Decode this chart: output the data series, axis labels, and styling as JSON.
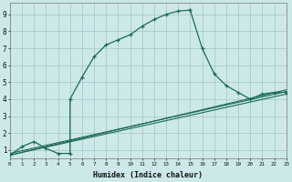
{
  "xlabel": "Humidex (Indice chaleur)",
  "bg_color": "#cde8e8",
  "grid_color": "#a8cccc",
  "line_color": "#1a6b5a",
  "xlim": [
    0,
    23
  ],
  "ylim": [
    0.5,
    9.7
  ],
  "xticks": [
    0,
    1,
    2,
    3,
    4,
    5,
    6,
    7,
    8,
    9,
    10,
    11,
    12,
    13,
    14,
    15,
    16,
    17,
    18,
    19,
    20,
    21,
    22,
    23
  ],
  "yticks": [
    1,
    2,
    3,
    4,
    5,
    6,
    7,
    8,
    9
  ],
  "main_line_x": [
    0,
    1,
    2,
    3,
    4,
    5,
    5,
    6,
    7,
    8,
    9,
    10,
    11,
    12,
    13,
    14,
    15,
    15,
    16,
    17,
    18,
    19,
    20,
    21,
    22,
    23
  ],
  "main_line_y": [
    0.7,
    1.2,
    1.5,
    1.1,
    0.8,
    0.8,
    4.0,
    5.3,
    6.5,
    7.2,
    7.5,
    7.8,
    8.3,
    8.7,
    9.0,
    9.2,
    9.25,
    9.25,
    7.0,
    5.5,
    4.8,
    4.4,
    4.0,
    4.3,
    4.4,
    4.4
  ],
  "line2_x": [
    0,
    23
  ],
  "line2_y": [
    0.7,
    4.3
  ],
  "line3_x": [
    0,
    23
  ],
  "line3_y": [
    0.8,
    4.45
  ],
  "line4_x": [
    0,
    23
  ],
  "line4_y": [
    0.7,
    4.55
  ]
}
